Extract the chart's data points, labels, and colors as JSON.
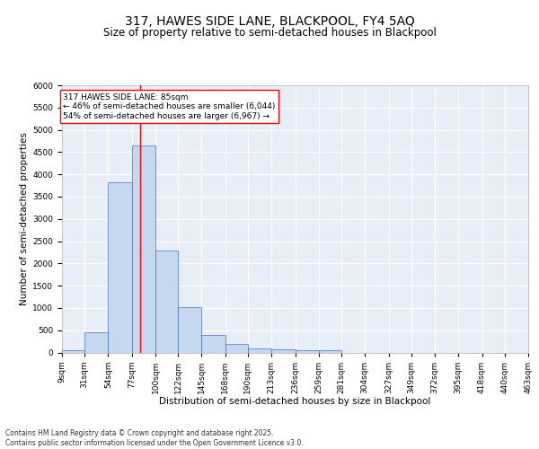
{
  "title1": "317, HAWES SIDE LANE, BLACKPOOL, FY4 5AQ",
  "title2": "Size of property relative to semi-detached houses in Blackpool",
  "xlabel": "Distribution of semi-detached houses by size in Blackpool",
  "ylabel": "Number of semi-detached properties",
  "bins": [
    9,
    31,
    54,
    77,
    100,
    122,
    145,
    168,
    190,
    213,
    236,
    259,
    281,
    304,
    327,
    349,
    372,
    395,
    418,
    440,
    463
  ],
  "bin_labels": [
    "9sqm",
    "31sqm",
    "54sqm",
    "77sqm",
    "100sqm",
    "122sqm",
    "145sqm",
    "168sqm",
    "190sqm",
    "213sqm",
    "236sqm",
    "259sqm",
    "281sqm",
    "304sqm",
    "327sqm",
    "349sqm",
    "372sqm",
    "395sqm",
    "418sqm",
    "440sqm",
    "463sqm"
  ],
  "values": [
    50,
    450,
    3820,
    4650,
    2280,
    1010,
    400,
    200,
    100,
    75,
    60,
    50,
    0,
    0,
    0,
    0,
    0,
    0,
    0,
    0
  ],
  "bar_color": "#c5d8f0",
  "bar_edge_color": "#4472c4",
  "vline_x": 85,
  "vline_color": "red",
  "annotation_text": "317 HAWES SIDE LANE: 85sqm\n← 46% of semi-detached houses are smaller (6,044)\n54% of semi-detached houses are larger (6,967) →",
  "annotation_box_color": "white",
  "annotation_box_edge": "red",
  "ylim": [
    0,
    6000
  ],
  "yticks": [
    0,
    500,
    1000,
    1500,
    2000,
    2500,
    3000,
    3500,
    4000,
    4500,
    5000,
    5500,
    6000
  ],
  "background_color": "#e8eef7",
  "grid_color": "white",
  "footer": "Contains HM Land Registry data © Crown copyright and database right 2025.\nContains public sector information licensed under the Open Government Licence v3.0.",
  "title_fontsize": 10,
  "subtitle_fontsize": 8.5,
  "axis_label_fontsize": 7.5,
  "tick_fontsize": 6.5,
  "annotation_fontsize": 6.5,
  "footer_fontsize": 5.5
}
